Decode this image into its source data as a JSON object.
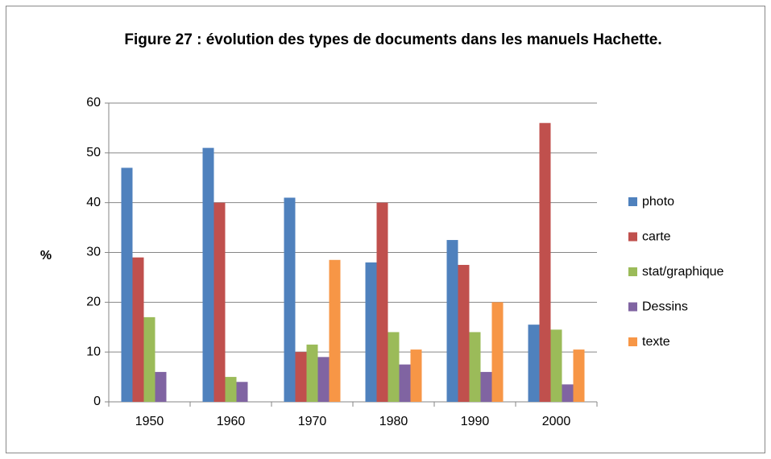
{
  "chart_data": {
    "type": "bar",
    "title": "Figure 27 : évolution des types de documents dans les manuels Hachette.",
    "y_label": "%",
    "categories": [
      "1950",
      "1960",
      "1970",
      "1980",
      "1990",
      "2000"
    ],
    "series": [
      {
        "name": "photo",
        "color": "#4f81bd",
        "values": [
          47,
          51,
          41,
          28,
          32.5,
          15.5
        ]
      },
      {
        "name": "carte",
        "color": "#c0504d",
        "values": [
          29,
          40,
          10,
          40,
          27.5,
          56
        ]
      },
      {
        "name": "stat/graphique",
        "color": "#9bbb59",
        "values": [
          17,
          5,
          11.5,
          14,
          14,
          14.5
        ]
      },
      {
        "name": "Dessins",
        "color": "#8064a2",
        "values": [
          6,
          4,
          9,
          7.5,
          6,
          3.5
        ]
      },
      {
        "name": "texte",
        "color": "#f79646",
        "values": [
          0,
          0,
          28.5,
          10.5,
          20,
          10.5
        ]
      }
    ],
    "ylim": [
      0,
      60
    ],
    "yticks": [
      0,
      10,
      20,
      30,
      40,
      50,
      60
    ],
    "grid": true,
    "legend": "right"
  }
}
